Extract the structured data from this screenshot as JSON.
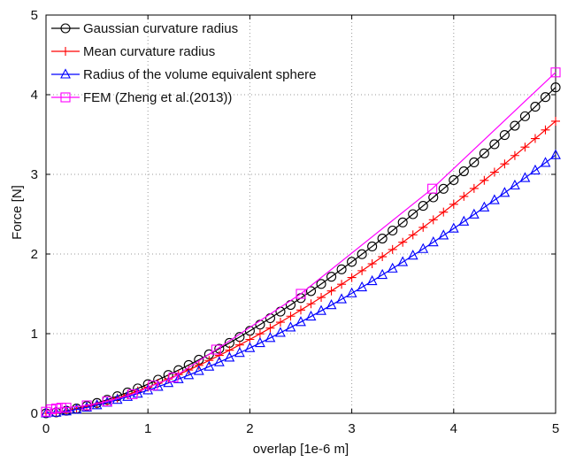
{
  "chart_data": {
    "type": "line",
    "title": "",
    "xlabel": "overlap [1e-6 m]",
    "ylabel": "Force [N]",
    "xlim": [
      0,
      5
    ],
    "ylim": [
      0,
      5
    ],
    "xticks": [
      0,
      1,
      2,
      3,
      4,
      5
    ],
    "yticks": [
      0,
      1,
      2,
      3,
      4,
      5
    ],
    "grid": true,
    "legend_position": "top-left",
    "series": [
      {
        "name": "Gaussian curvature radius",
        "color": "#000000",
        "marker": "circle",
        "model": "power",
        "coef": 0.366,
        "exponent": 1.5,
        "x_start": 0,
        "x_end": 5,
        "num_points": 51
      },
      {
        "name": "Mean curvature radius",
        "color": "#ff0000",
        "marker": "plus",
        "model": "power",
        "coef": 0.328,
        "exponent": 1.5,
        "x_start": 0,
        "x_end": 5,
        "num_points": 51
      },
      {
        "name": "Radius of the volume equivalent sphere",
        "color": "#0000ff",
        "marker": "triangle",
        "model": "power",
        "coef": 0.29,
        "exponent": 1.5,
        "x_start": 0,
        "x_end": 5,
        "num_points": 51
      },
      {
        "name": "FEM (Zheng et al.(2013))",
        "color": "#ff00ff",
        "marker": "square",
        "x": [
          0,
          0.05,
          0.1,
          0.15,
          0.2,
          0.4,
          0.6,
          0.85,
          1.05,
          1.25,
          1.67,
          2.5,
          3.79,
          5.0
        ],
        "y": [
          0.02,
          0.05,
          0.06,
          0.07,
          0.07,
          0.1,
          0.15,
          0.24,
          0.35,
          0.45,
          0.8,
          1.5,
          2.82,
          4.28
        ]
      }
    ]
  }
}
